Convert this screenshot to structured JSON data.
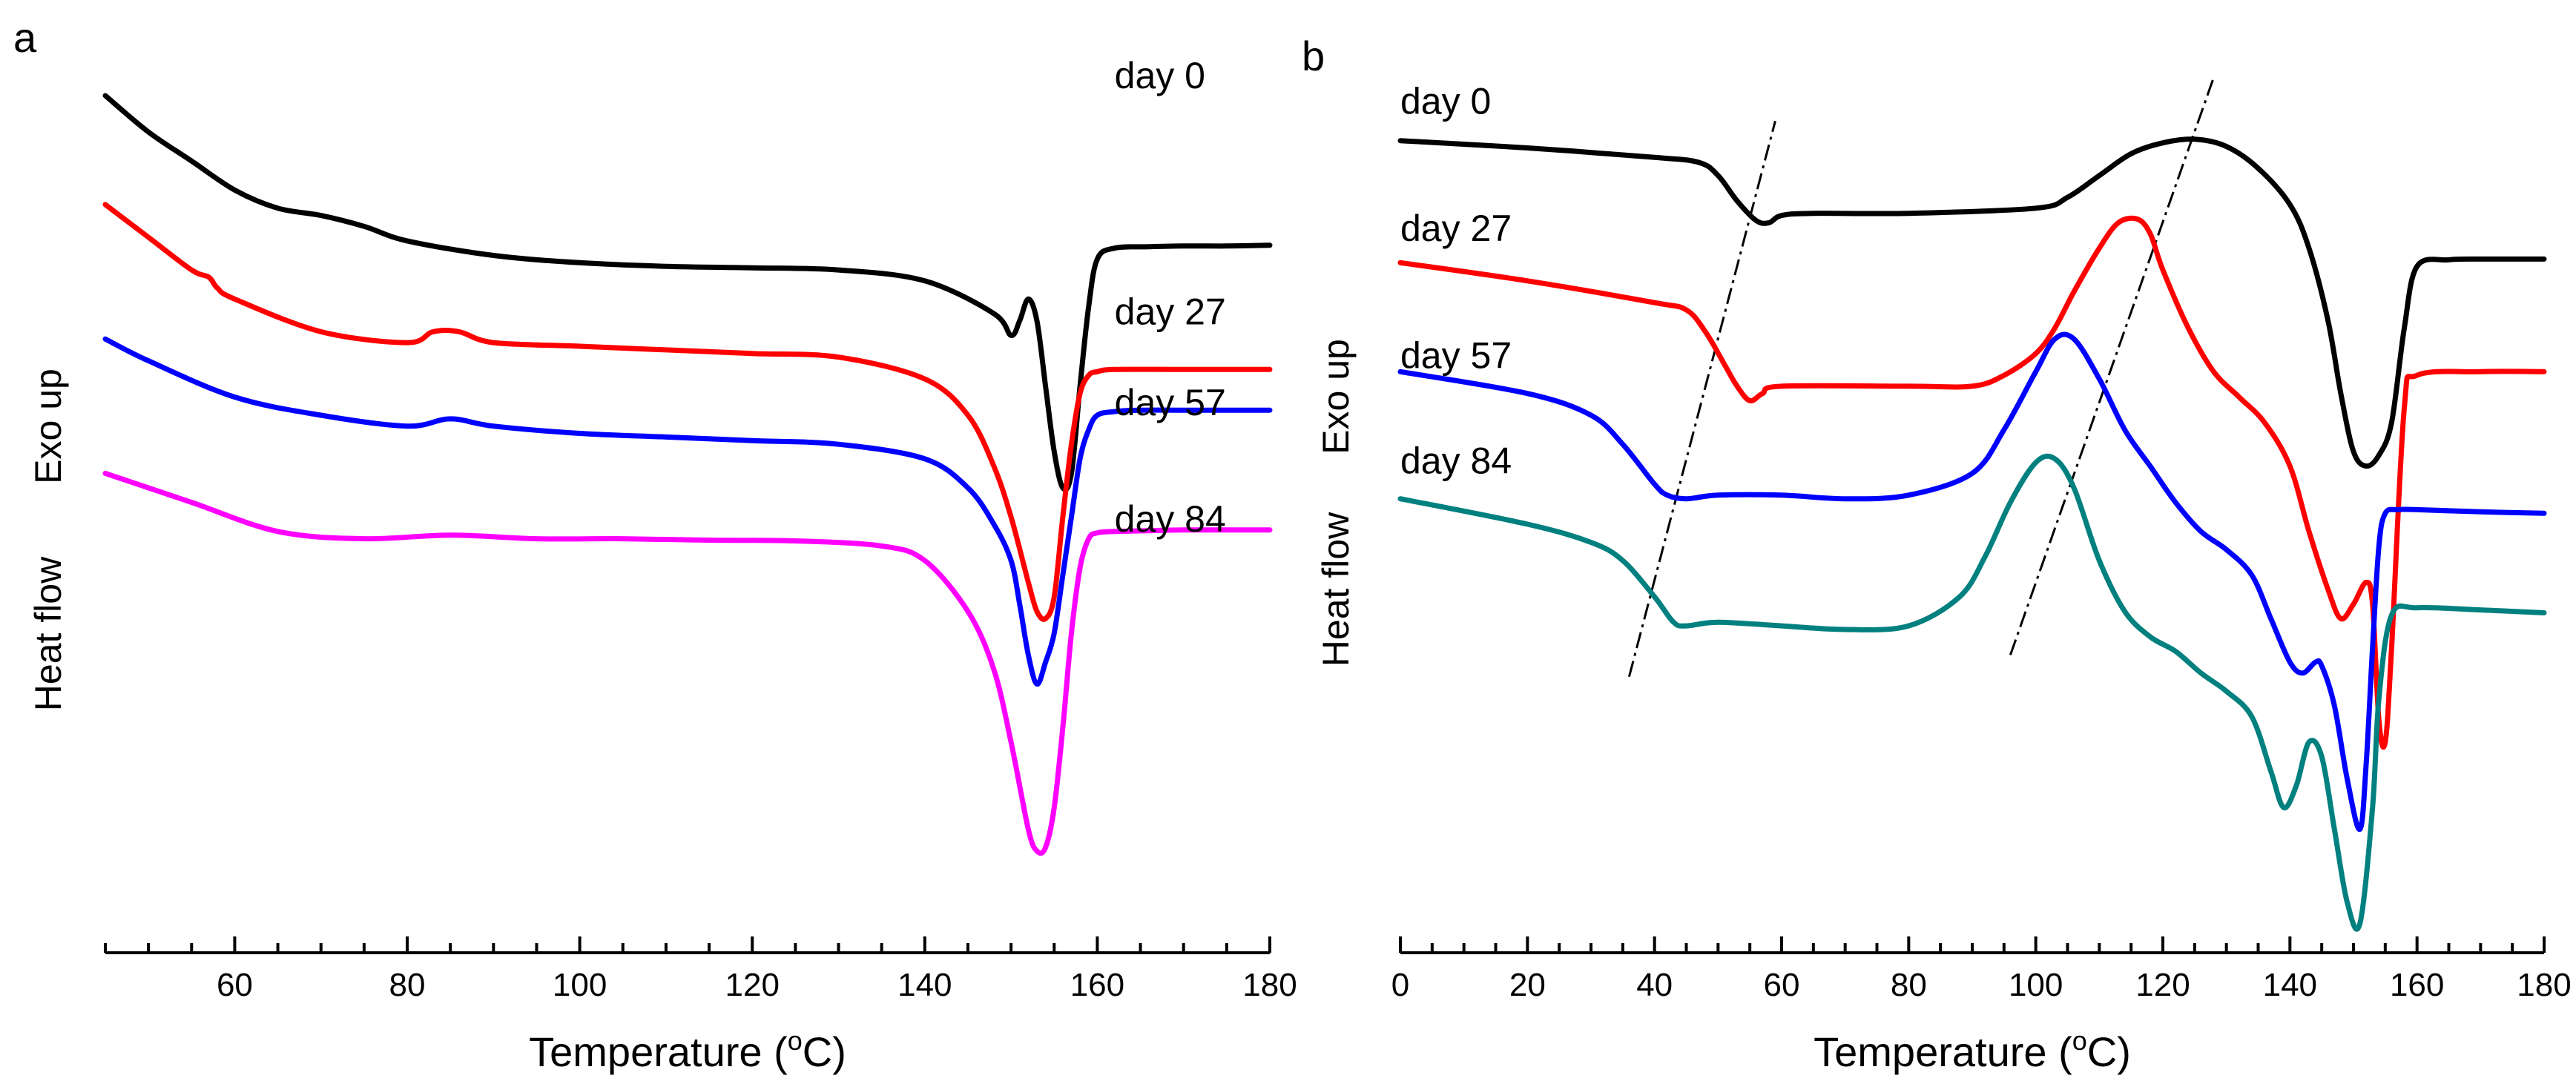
{
  "chart_data": [
    {
      "panel": "a",
      "type": "line",
      "xlabel_prefix": "Temperature (",
      "xlabel_degree": "o",
      "xlabel_unit": "C)",
      "ylabel_top": "Exo up",
      "ylabel_bottom": "Heat flow",
      "xlim": [
        45,
        180
      ],
      "ylim": [
        -11,
        1.3
      ],
      "xticks": [
        60,
        80,
        100,
        120,
        140,
        160,
        180
      ],
      "x_minor_step": 5,
      "y_axis_visible": false,
      "series": [
        {
          "name": "day 0",
          "color": "#000000",
          "label_at": [
            162,
            0.9
          ],
          "x": [
            45,
            50,
            55,
            60,
            65,
            70,
            75,
            80,
            90,
            100,
            110,
            120,
            130,
            140,
            148,
            150,
            151,
            152,
            153,
            154,
            155,
            156,
            157,
            158,
            159,
            160,
            162,
            166,
            170,
            175,
            180
          ],
          "y": [
            0.8,
            0.3,
            -0.1,
            -0.5,
            -0.75,
            -0.85,
            -1.0,
            -1.2,
            -1.4,
            -1.5,
            -1.55,
            -1.57,
            -1.6,
            -1.75,
            -2.2,
            -2.5,
            -2.3,
            -2.0,
            -2.3,
            -3.2,
            -4.1,
            -4.6,
            -4.4,
            -3.2,
            -2.1,
            -1.45,
            -1.3,
            -1.28,
            -1.27,
            -1.27,
            -1.26
          ]
        },
        {
          "name": "day 27",
          "color": "#ff0000",
          "label_at": [
            162,
            -2.35
          ],
          "x": [
            45,
            50,
            55,
            57,
            58,
            60,
            70,
            80,
            83,
            86,
            90,
            100,
            110,
            120,
            130,
            140,
            145,
            148,
            150,
            152,
            153,
            154,
            155,
            156,
            157,
            158,
            159,
            160,
            162,
            170,
            180
          ],
          "y": [
            -0.7,
            -1.15,
            -1.6,
            -1.7,
            -1.85,
            -2.0,
            -2.45,
            -2.6,
            -2.45,
            -2.45,
            -2.6,
            -2.65,
            -2.7,
            -2.75,
            -2.8,
            -3.1,
            -3.6,
            -4.3,
            -5.0,
            -5.9,
            -6.3,
            -6.4,
            -6.1,
            -5.0,
            -4.0,
            -3.3,
            -3.05,
            -3.0,
            -2.97,
            -2.97,
            -2.97
          ]
        },
        {
          "name": "day 57",
          "color": "#0000ff",
          "label_at": [
            162,
            -3.6
          ],
          "x": [
            45,
            50,
            60,
            70,
            80,
            85,
            90,
            100,
            110,
            120,
            130,
            140,
            145,
            148,
            150,
            151,
            152,
            153,
            154,
            155,
            156,
            157,
            158,
            159,
            160,
            162,
            165,
            170,
            180
          ],
          "y": [
            -2.55,
            -2.85,
            -3.35,
            -3.6,
            -3.75,
            -3.65,
            -3.75,
            -3.85,
            -3.9,
            -3.95,
            -4.0,
            -4.2,
            -4.6,
            -5.1,
            -5.6,
            -6.2,
            -6.9,
            -7.3,
            -7.0,
            -6.6,
            -5.8,
            -5.0,
            -4.2,
            -3.8,
            -3.6,
            -3.55,
            -3.53,
            -3.53,
            -3.53
          ]
        },
        {
          "name": "day 84",
          "color": "#ff00ff",
          "label_at": [
            162,
            -5.2
          ],
          "x": [
            45,
            55,
            65,
            75,
            85,
            95,
            105,
            115,
            125,
            135,
            140,
            145,
            148,
            150,
            152,
            153,
            154,
            155,
            156,
            157,
            158,
            159,
            160,
            162,
            166,
            170,
            180
          ],
          "y": [
            -4.4,
            -4.8,
            -5.2,
            -5.3,
            -5.25,
            -5.3,
            -5.3,
            -5.32,
            -5.33,
            -5.4,
            -5.6,
            -6.3,
            -7.1,
            -8.1,
            -9.3,
            -9.6,
            -9.55,
            -9.0,
            -7.9,
            -6.6,
            -5.7,
            -5.3,
            -5.22,
            -5.2,
            -5.19,
            -5.18,
            -5.18
          ]
        }
      ]
    },
    {
      "panel": "b",
      "type": "line",
      "xlabel_prefix": "Temperature (",
      "xlabel_degree": "o",
      "xlabel_unit": "C)",
      "ylabel_top": "Exo up",
      "ylabel_bottom": "Heat flow",
      "xlim": [
        0,
        180
      ],
      "ylim": [
        -11,
        1.3
      ],
      "xticks": [
        0,
        20,
        40,
        60,
        80,
        100,
        120,
        140,
        160,
        180
      ],
      "x_minor_step": 5,
      "y_axis_visible": false,
      "series": [
        {
          "name": "day 0",
          "color": "#000000",
          "label_at": [
            0,
            0.55
          ],
          "x": [
            0,
            20,
            40,
            47,
            50,
            53,
            56,
            58,
            60,
            65,
            80,
            100,
            105,
            110,
            115,
            120,
            125,
            130,
            135,
            140,
            143,
            146,
            148,
            150,
            152,
            154,
            156,
            158,
            160,
            165,
            170,
            175,
            180
          ],
          "y": [
            0.18,
            0.08,
            -0.05,
            -0.12,
            -0.3,
            -0.65,
            -0.92,
            -0.95,
            -0.85,
            -0.82,
            -0.82,
            -0.75,
            -0.6,
            -0.3,
            0.0,
            0.15,
            0.2,
            0.1,
            -0.2,
            -0.7,
            -1.3,
            -2.3,
            -3.3,
            -4.1,
            -4.3,
            -4.15,
            -3.7,
            -2.4,
            -1.55,
            -1.46,
            -1.45,
            -1.45,
            -1.45
          ]
        },
        {
          "name": "day 27",
          "color": "#ff0000",
          "label_at": [
            0,
            -1.2
          ],
          "x": [
            0,
            20,
            40,
            45,
            48,
            51,
            53,
            55,
            57,
            60,
            80,
            90,
            95,
            100,
            103,
            106,
            110,
            113,
            116,
            118,
            120,
            124,
            128,
            132,
            136,
            140,
            143,
            146,
            148,
            150,
            152,
            153,
            154,
            155,
            156,
            158,
            160,
            170,
            180
          ],
          "y": [
            -1.5,
            -1.75,
            -2.05,
            -2.15,
            -2.45,
            -2.9,
            -3.2,
            -3.4,
            -3.3,
            -3.2,
            -3.2,
            -3.2,
            -3.05,
            -2.75,
            -2.4,
            -1.9,
            -1.3,
            -0.95,
            -0.9,
            -1.1,
            -1.6,
            -2.4,
            -3.0,
            -3.35,
            -3.7,
            -4.3,
            -5.2,
            -6.0,
            -6.4,
            -6.2,
            -5.9,
            -6.2,
            -7.8,
            -8.1,
            -6.8,
            -3.5,
            -3.05,
            -3.0,
            -3.0
          ]
        },
        {
          "name": "day 57",
          "color": "#0000ff",
          "label_at": [
            0,
            -2.95
          ],
          "x": [
            0,
            20,
            30,
            35,
            40,
            42,
            45,
            50,
            60,
            70,
            80,
            90,
            95,
            100,
            103,
            106,
            110,
            114,
            118,
            122,
            126,
            130,
            134,
            137,
            140,
            142,
            144,
            145,
            147,
            149,
            151,
            152,
            153,
            154,
            155,
            157,
            160,
            170,
            180
          ],
          "y": [
            -3.0,
            -3.3,
            -3.6,
            -4.0,
            -4.55,
            -4.7,
            -4.75,
            -4.7,
            -4.7,
            -4.75,
            -4.7,
            -4.4,
            -3.8,
            -3.0,
            -2.55,
            -2.55,
            -3.1,
            -3.8,
            -4.3,
            -4.8,
            -5.2,
            -5.45,
            -5.8,
            -6.4,
            -7.0,
            -7.15,
            -7.0,
            -7.05,
            -7.6,
            -8.6,
            -9.3,
            -8.4,
            -6.8,
            -5.4,
            -4.95,
            -4.9,
            -4.9,
            -4.93,
            -4.95
          ]
        },
        {
          "name": "day 84",
          "color": "#00807f",
          "label_at": [
            0,
            -4.4
          ],
          "x": [
            0,
            20,
            30,
            35,
            40,
            43,
            45,
            50,
            60,
            70,
            80,
            88,
            92,
            96,
            100,
            103,
            106,
            110,
            114,
            118,
            122,
            126,
            130,
            134,
            137,
            139,
            141,
            143,
            145,
            147,
            149,
            151,
            153,
            154,
            156,
            160,
            170,
            180
          ],
          "y": [
            -4.75,
            -5.1,
            -5.35,
            -5.6,
            -6.1,
            -6.45,
            -6.5,
            -6.45,
            -6.5,
            -6.55,
            -6.5,
            -6.1,
            -5.55,
            -4.8,
            -4.25,
            -4.2,
            -4.6,
            -5.6,
            -6.3,
            -6.65,
            -6.85,
            -7.15,
            -7.4,
            -7.75,
            -8.5,
            -9.0,
            -8.7,
            -8.1,
            -8.3,
            -9.3,
            -10.3,
            -10.6,
            -9.0,
            -7.5,
            -6.35,
            -6.25,
            -6.28,
            -6.32
          ]
        }
      ],
      "guide_lines": [
        {
          "x": [
            36,
            59
          ],
          "y": [
            -7.2,
            0.45
          ]
        },
        {
          "x": [
            96,
            128
          ],
          "y": [
            -6.9,
            1.05
          ]
        }
      ]
    }
  ],
  "labels": {
    "panel_a": "a",
    "panel_b": "b"
  }
}
